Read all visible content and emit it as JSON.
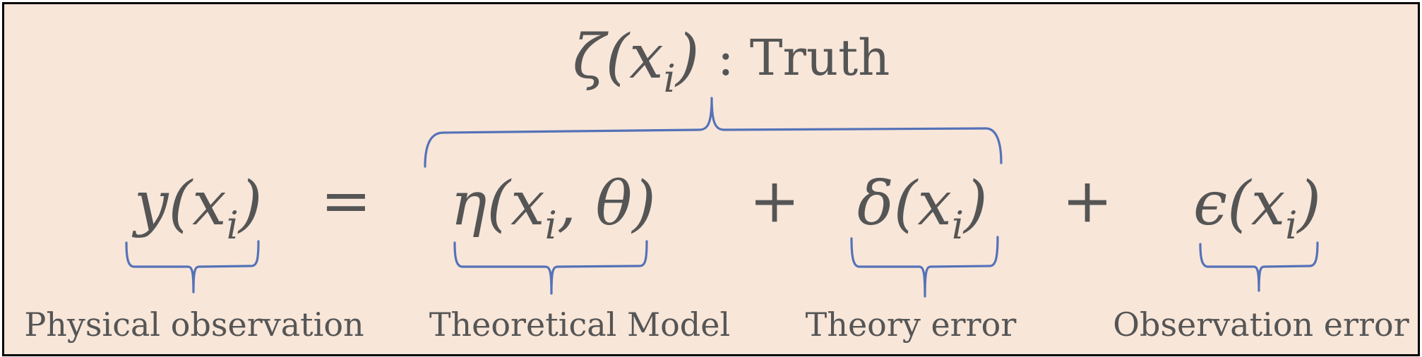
{
  "truth": {
    "term": "ζ(x",
    "sub": "i",
    "close": ")",
    "label": ": Truth"
  },
  "equation": {
    "lhs": {
      "term": "y(x",
      "sub": "i",
      "close": ")"
    },
    "equals": "=",
    "plus1": "+",
    "plus2": "+",
    "model": {
      "term": "η(x",
      "sub": "i",
      "mid": ", θ)"
    },
    "theory_error": {
      "term": "δ(x",
      "sub": "i",
      "close": ")"
    },
    "obs_error": {
      "term": "ϵ(x",
      "sub": "i",
      "close": ")"
    }
  },
  "labels": {
    "physical": "Physical observation",
    "model": "Theoretical Model",
    "theory_error": "Theory error",
    "obs_error": "Observation error"
  },
  "colors": {
    "background": "#f8e6d9",
    "brace": "#5472b8",
    "text": "#555555",
    "border": "#000000"
  }
}
